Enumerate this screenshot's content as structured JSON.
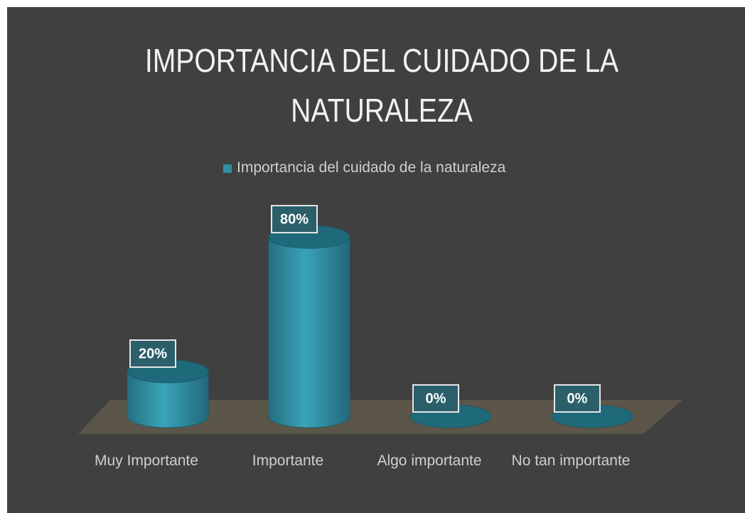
{
  "chart_data": {
    "type": "bar3d",
    "title": "IMPORTANCIA DEL CUIDADO DE LA NATURALEZA",
    "categories": [
      "Muy Importante",
      "Importante",
      "Algo importante",
      "No tan importante"
    ],
    "series": [
      {
        "name": "Importancia del cuidado de la naturaleza",
        "color": "#2f8fa4",
        "values": [
          20,
          80,
          0,
          0
        ],
        "value_labels": [
          "20%",
          "80%",
          "0%",
          "0%"
        ]
      }
    ],
    "ylim": [
      0,
      100
    ],
    "legend": "top"
  }
}
